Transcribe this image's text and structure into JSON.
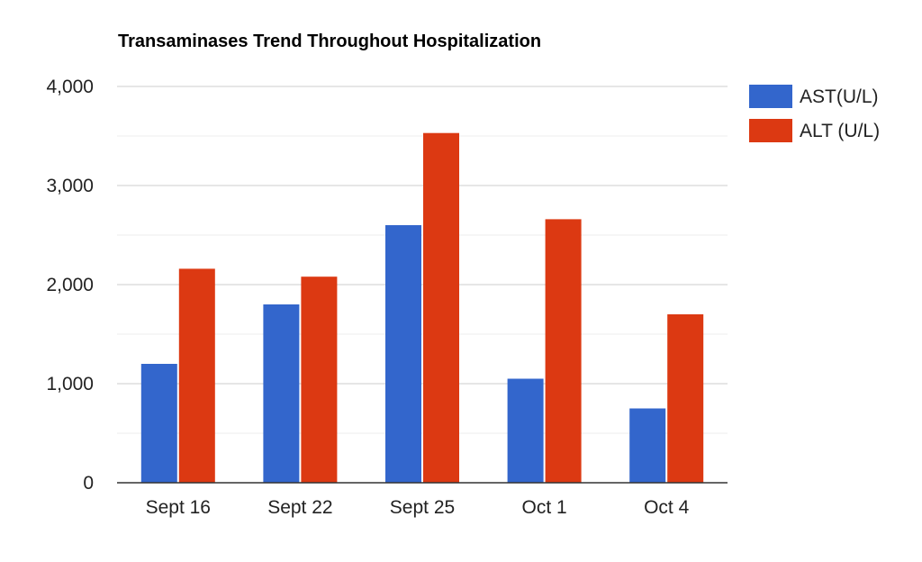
{
  "chart_data": {
    "type": "bar",
    "title": "Transaminases Trend Throughout Hospitalization",
    "xlabel": "",
    "ylabel": "",
    "categories": [
      "Sept 16",
      "Sept 22",
      "Sept 25",
      "Oct 1",
      "Oct 4"
    ],
    "series": [
      {
        "name": "AST(U/L)",
        "color": "#3366cc",
        "values": [
          1200,
          1800,
          2600,
          1050,
          750
        ]
      },
      {
        "name": "ALT (U/L)",
        "color": "#dc3912",
        "values": [
          2160,
          2080,
          3530,
          2660,
          1700
        ]
      }
    ],
    "ylim": [
      0,
      4000
    ],
    "yticks": [
      0,
      1000,
      2000,
      3000,
      4000
    ],
    "ytick_labels": [
      "0",
      "1,000",
      "2,000",
      "3,000",
      "4,000"
    ],
    "grid": true,
    "legend_position": "right"
  }
}
